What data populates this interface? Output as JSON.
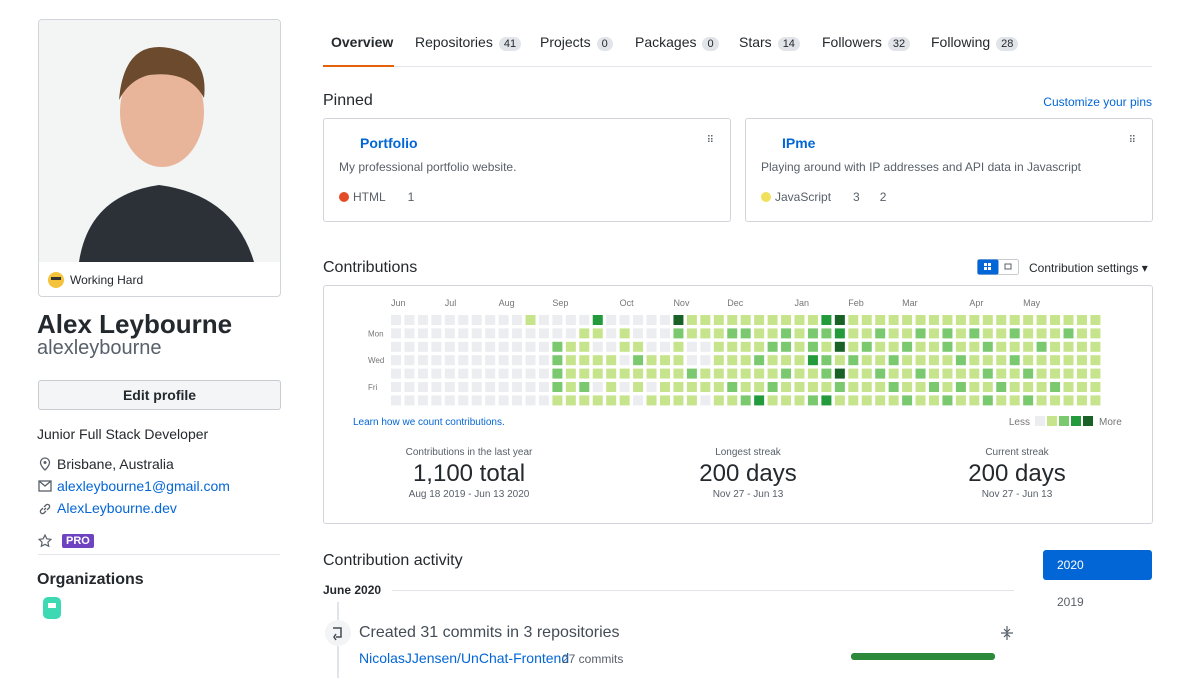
{
  "profile": {
    "status": "Working Hard",
    "name": "Alex Leybourne",
    "username": "alexleybourne",
    "edit_button": "Edit profile",
    "bio": "Junior Full Stack Developer",
    "location": "Brisbane, Australia",
    "email": "alexleybourne1@gmail.com",
    "website": "AlexLeybourne.dev",
    "badge": "PRO",
    "organizations_title": "Organizations"
  },
  "tabs": [
    {
      "label": "Overview"
    },
    {
      "label": "Repositories",
      "count": "41"
    },
    {
      "label": "Projects",
      "count": "0"
    },
    {
      "label": "Packages",
      "count": "0"
    },
    {
      "label": "Stars",
      "count": "14"
    },
    {
      "label": "Followers",
      "count": "32"
    },
    {
      "label": "Following",
      "count": "28"
    }
  ],
  "pinned": {
    "title": "Pinned",
    "customize": "Customize your pins",
    "cards": [
      {
        "name": "Portfolio",
        "description": "My professional portfolio website.",
        "language": "HTML",
        "language_color": "#e34c26",
        "forks": "1"
      },
      {
        "name": "IPme",
        "description": "Playing around with IP addresses and API data in Javascript",
        "language": "JavaScript",
        "language_color": "#f1e05a",
        "stars": "3",
        "forks": "2"
      }
    ]
  },
  "contributions": {
    "title": "Contributions",
    "settings": "Contribution settings",
    "months": [
      "Jun",
      "Jul",
      "Aug",
      "Sep",
      "Oct",
      "Nov",
      "Dec",
      "Jan",
      "Feb",
      "Mar",
      "Apr",
      "May"
    ],
    "month_weeks": [
      0,
      4,
      8,
      12,
      17,
      21,
      25,
      30,
      34,
      38,
      43,
      47
    ],
    "days": [
      "Mon",
      "Wed",
      "Fri"
    ],
    "learn": "Learn how we count contributions.",
    "less": "Less",
    "more": "More",
    "colors": [
      "#ebedf0",
      "#c6e48b",
      "#7bc96f",
      "#239a3b",
      "#196127"
    ],
    "weeks": [
      [
        0,
        0,
        0,
        0,
        0,
        0,
        0
      ],
      [
        0,
        0,
        0,
        0,
        0,
        0,
        0
      ],
      [
        0,
        0,
        0,
        0,
        0,
        0,
        0
      ],
      [
        0,
        0,
        0,
        0,
        0,
        0,
        0
      ],
      [
        0,
        0,
        0,
        0,
        0,
        0,
        0
      ],
      [
        0,
        0,
        0,
        0,
        0,
        0,
        0
      ],
      [
        0,
        0,
        0,
        0,
        0,
        0,
        0
      ],
      [
        0,
        0,
        0,
        0,
        0,
        0,
        0
      ],
      [
        0,
        0,
        0,
        0,
        0,
        0,
        0
      ],
      [
        0,
        0,
        0,
        0,
        0,
        0,
        0
      ],
      [
        1,
        0,
        0,
        0,
        0,
        0,
        0
      ],
      [
        0,
        0,
        0,
        0,
        0,
        0,
        0
      ],
      [
        0,
        0,
        2,
        2,
        2,
        2,
        1
      ],
      [
        0,
        0,
        1,
        1,
        1,
        1,
        1
      ],
      [
        0,
        1,
        1,
        1,
        1,
        2,
        1
      ],
      [
        3,
        1,
        0,
        1,
        1,
        0,
        1
      ],
      [
        0,
        0,
        0,
        1,
        1,
        1,
        1
      ],
      [
        0,
        1,
        1,
        0,
        1,
        0,
        1
      ],
      [
        0,
        0,
        1,
        2,
        1,
        1,
        0
      ],
      [
        0,
        0,
        0,
        1,
        1,
        0,
        1
      ],
      [
        0,
        0,
        0,
        1,
        1,
        1,
        1
      ],
      [
        4,
        2,
        1,
        1,
        1,
        1,
        1
      ],
      [
        1,
        1,
        0,
        0,
        2,
        1,
        1
      ],
      [
        1,
        1,
        0,
        0,
        1,
        1,
        0
      ],
      [
        1,
        1,
        1,
        1,
        1,
        1,
        1
      ],
      [
        1,
        2,
        1,
        1,
        1,
        2,
        1
      ],
      [
        1,
        2,
        1,
        1,
        1,
        1,
        2
      ],
      [
        1,
        1,
        1,
        2,
        1,
        1,
        3
      ],
      [
        1,
        1,
        2,
        1,
        1,
        2,
        1
      ],
      [
        1,
        2,
        2,
        1,
        2,
        1,
        1
      ],
      [
        1,
        1,
        1,
        1,
        1,
        1,
        1
      ],
      [
        1,
        2,
        2,
        3,
        1,
        1,
        2
      ],
      [
        3,
        2,
        1,
        2,
        2,
        1,
        3
      ],
      [
        4,
        3,
        4,
        1,
        4,
        2,
        1
      ],
      [
        1,
        1,
        1,
        2,
        1,
        1,
        1
      ],
      [
        1,
        1,
        2,
        1,
        1,
        1,
        1
      ],
      [
        1,
        2,
        1,
        1,
        2,
        1,
        1
      ],
      [
        1,
        1,
        1,
        2,
        1,
        2,
        1
      ],
      [
        1,
        1,
        2,
        1,
        1,
        1,
        2
      ],
      [
        1,
        2,
        1,
        1,
        2,
        1,
        1
      ],
      [
        1,
        1,
        1,
        1,
        1,
        2,
        1
      ],
      [
        1,
        2,
        2,
        1,
        1,
        1,
        2
      ],
      [
        1,
        1,
        1,
        2,
        1,
        2,
        1
      ],
      [
        1,
        2,
        1,
        1,
        1,
        1,
        1
      ],
      [
        1,
        1,
        2,
        1,
        2,
        1,
        2
      ],
      [
        1,
        1,
        1,
        1,
        1,
        2,
        1
      ],
      [
        1,
        2,
        1,
        2,
        1,
        1,
        1
      ],
      [
        1,
        1,
        1,
        1,
        2,
        1,
        2
      ],
      [
        1,
        1,
        2,
        1,
        1,
        1,
        1
      ],
      [
        1,
        1,
        1,
        1,
        1,
        2,
        1
      ],
      [
        1,
        2,
        1,
        1,
        1,
        1,
        1
      ],
      [
        1,
        1,
        1,
        1,
        1,
        1,
        1
      ],
      [
        1,
        1,
        1,
        1,
        1,
        1,
        1
      ]
    ],
    "stats": [
      {
        "label": "Contributions in the last year",
        "value": "1,100 total",
        "range": "Aug 18 2019 - Jun 13 2020"
      },
      {
        "label": "Longest streak",
        "value": "200 days",
        "range": "Nov 27 - Jun 13"
      },
      {
        "label": "Current streak",
        "value": "200 days",
        "range": "Nov 27 - Jun 13"
      }
    ]
  },
  "activity": {
    "title": "Contribution activity",
    "years": [
      "2020",
      "2019"
    ],
    "month": "June 2020",
    "summary": "Created 31 commits in 3 repositories",
    "repo": "NicolasJJensen/UnChat-Frontend",
    "repo_commits": "27 commits"
  }
}
